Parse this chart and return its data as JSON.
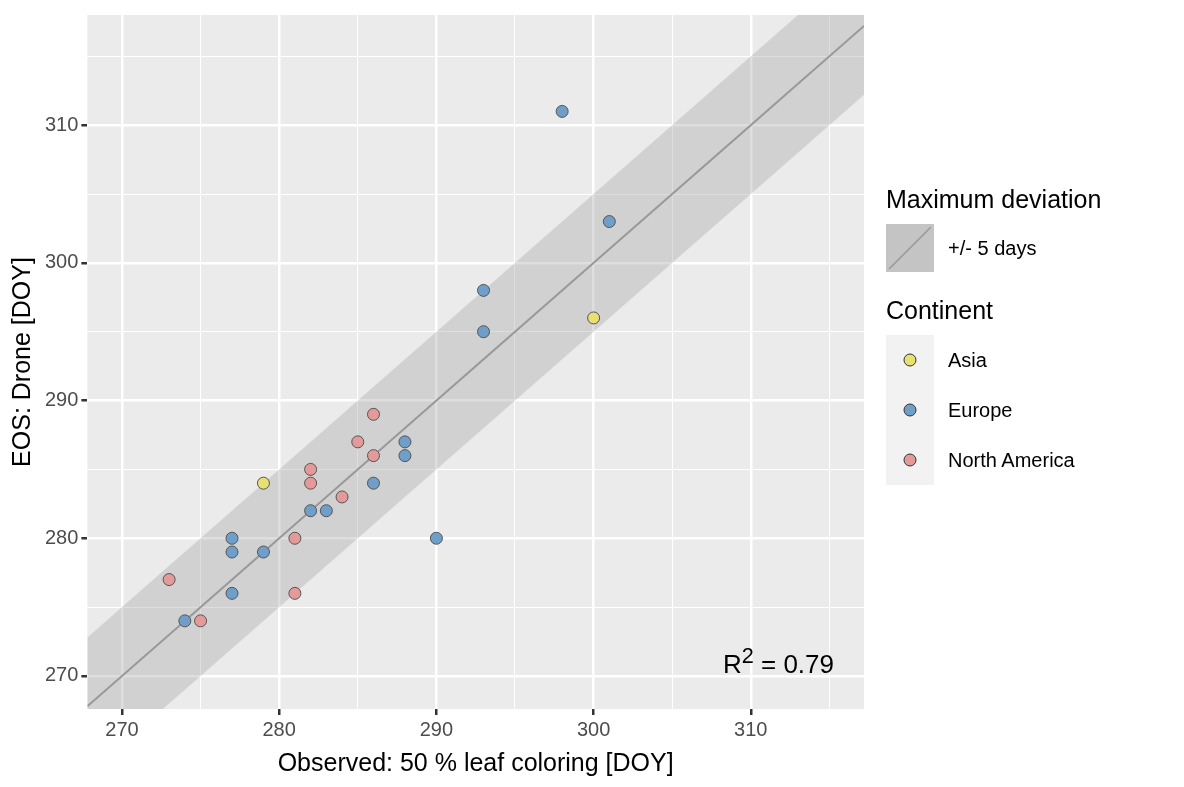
{
  "chart_data": {
    "type": "scatter",
    "xlabel": "Observed: 50 % leaf coloring [DOY]",
    "ylabel": "EOS: Drone [DOY]",
    "legend_title": "Continent",
    "annotations": [
      "Maximum deviation",
      "R$^{2}$ = 0.79"
    ],
    "xlim": [
      267.8,
      317.2
    ],
    "ylim": [
      267.6,
      318
    ],
    "xticks": [
      270,
      {
        "value": 275,
        "label": null
      },
      280,
      {
        "value": 285,
        "label": null
      },
      290,
      {
        "value": 295,
        "label": null
      },
      300,
      {
        "value": 305,
        "label": null
      },
      310,
      {
        "value": 315,
        "label": null
      }
    ],
    "yticks": [
      270,
      {
        "value": 275,
        "label": null
      },
      280,
      {
        "value": 285,
        "label": null
      },
      290,
      {
        "value": 295,
        "label": null
      },
      300,
      {
        "value": 305,
        "label": null
      },
      310,
      {
        "value": 315,
        "label": null
      }
    ],
    "grid": true,
    "legend": "right",
    "marker": "circle",
    "series": [
      {
        "name": "+/- 5 days",
        "type": "line",
        "color": "#999999",
        "line_style": "solid",
        "marker": "none",
        "x": [
          267.8,
          272.6,
          313,
          317.2
        ],
        "values": [
          267.8,
          272.6,
          313,
          317.2
        ],
        "lower": [
          267.6,
          267.6,
          308,
          312.2
        ],
        "upper": [
          272.8,
          277.6,
          318,
          318
        ]
      },
      {
        "name": "Asia",
        "color": "#e8e070",
        "x": [
          279,
          300
        ],
        "values": [
          284,
          296
        ]
      },
      {
        "name": "Europe",
        "color": "#6f9fc8",
        "x": [
          298,
          301,
          293,
          293,
          290,
          288,
          288,
          286,
          283,
          282,
          279,
          277,
          277,
          277,
          274
        ],
        "values": [
          311,
          303,
          298,
          295,
          280,
          287,
          286,
          284,
          282,
          282,
          279,
          280,
          279,
          276,
          274
        ]
      },
      {
        "name": "North America",
        "color": "#e49a98",
        "x": [
          273,
          275,
          281,
          281,
          282,
          282,
          284,
          285,
          286,
          286
        ],
        "values": [
          277,
          274,
          276,
          280,
          285,
          284,
          283,
          287,
          289,
          286
        ]
      }
    ]
  }
}
